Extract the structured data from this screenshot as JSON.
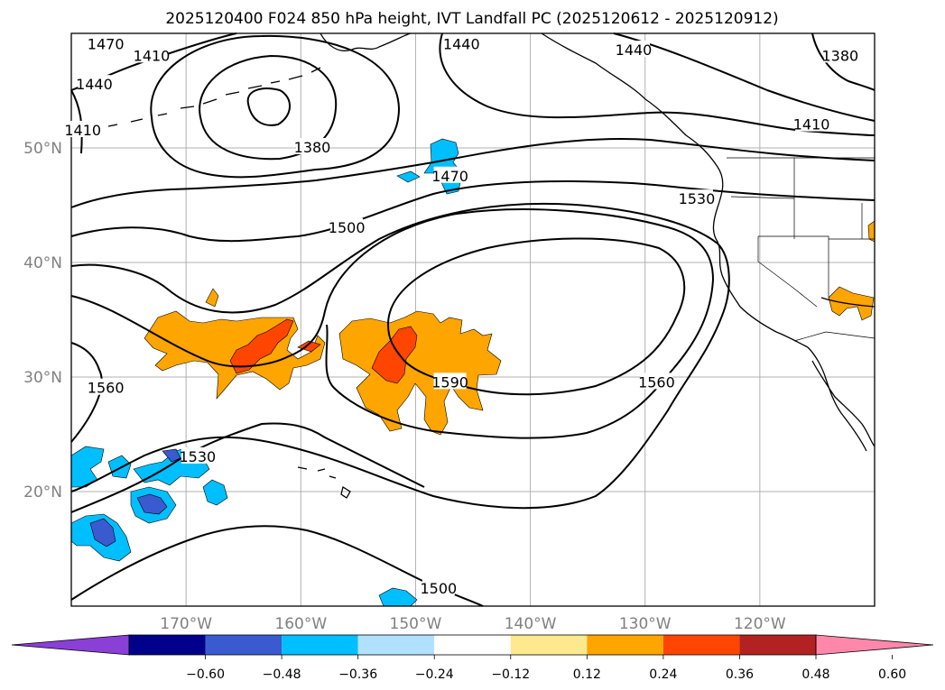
{
  "title": "2025120400 F024 850 hPa height, IVT Landfall PC (2025120612 - 2025120912)",
  "map": {
    "lon_range": [
      -180,
      -110
    ],
    "lat_range": [
      10,
      60
    ],
    "lat_ticks": [
      {
        "value": 20,
        "label": "20°N"
      },
      {
        "value": 30,
        "label": "30°N"
      },
      {
        "value": 40,
        "label": "40°N"
      },
      {
        "value": 50,
        "label": "50°N"
      }
    ],
    "lon_ticks": [
      {
        "value": -170,
        "label": "170°W"
      },
      {
        "value": -160,
        "label": "160°W"
      },
      {
        "value": -150,
        "label": "150°W"
      },
      {
        "value": -140,
        "label": "140°W"
      },
      {
        "value": -130,
        "label": "130°W"
      },
      {
        "value": -120,
        "label": "120°W"
      }
    ],
    "grid": true,
    "contour_labels": [
      {
        "text": "1470",
        "lon": -177,
        "lat": 59
      },
      {
        "text": "1410",
        "lon": -173,
        "lat": 58
      },
      {
        "text": "1440",
        "lon": -178,
        "lat": 55.5
      },
      {
        "text": "1410",
        "lon": -179,
        "lat": 51.5
      },
      {
        "text": "1380",
        "lon": -159,
        "lat": 50
      },
      {
        "text": "1440",
        "lon": -146,
        "lat": 59
      },
      {
        "text": "1440",
        "lon": -131,
        "lat": 58.5
      },
      {
        "text": "1380",
        "lon": -113,
        "lat": 58
      },
      {
        "text": "1410",
        "lon": -115.5,
        "lat": 52
      },
      {
        "text": "1470",
        "lon": -147,
        "lat": 47.5
      },
      {
        "text": "1530",
        "lon": -125.5,
        "lat": 45.5
      },
      {
        "text": "1500",
        "lon": -156,
        "lat": 43
      },
      {
        "text": "1590",
        "lon": -147,
        "lat": 29.5
      },
      {
        "text": "1560",
        "lon": -129,
        "lat": 29.5
      },
      {
        "text": "1560",
        "lon": -177,
        "lat": 29
      },
      {
        "text": "1530",
        "lon": -169,
        "lat": 23
      },
      {
        "text": "1500",
        "lon": -148,
        "lat": 11.5
      }
    ]
  },
  "colorbar": {
    "colors": [
      "#8a3fd6",
      "#00008b",
      "#3a5ad0",
      "#00bfff",
      "#b0e2ff",
      "#ffffff",
      "#ffe98e",
      "#ffa500",
      "#ff4500",
      "#b22222",
      "#ff88aa"
    ],
    "labels": [
      "−0.60",
      "−0.48",
      "−0.36",
      "−0.24",
      "−0.12",
      "0.12",
      "0.24",
      "0.36",
      "0.48",
      "0.60"
    ]
  },
  "colors": {
    "orange": "#ffa500",
    "red": "#ff4500",
    "cyan": "#00bfff",
    "blue": "#3a5ad0",
    "grid": "#b0b0b0"
  }
}
